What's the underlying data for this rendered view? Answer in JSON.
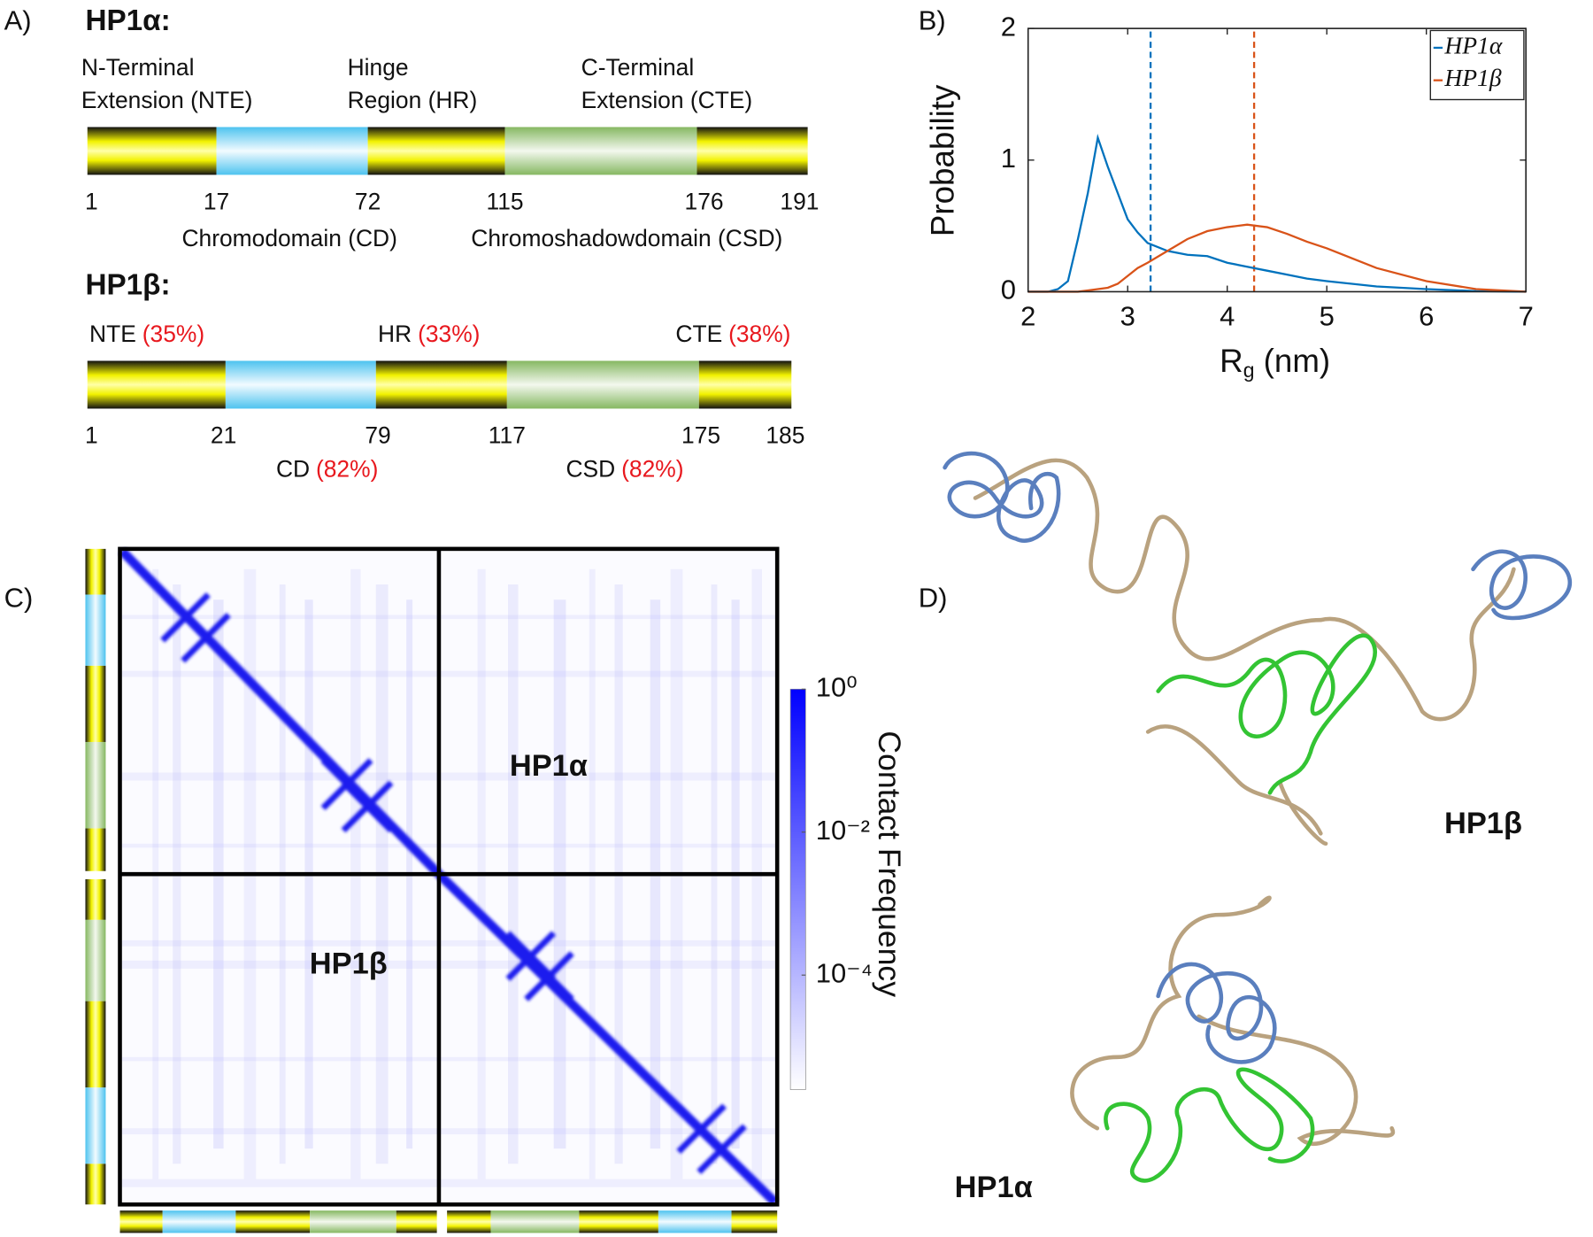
{
  "panel_labels": [
    "A)",
    "B)",
    "C)",
    "D)"
  ],
  "domains": {
    "hp1a": {
      "title": "HP1α:",
      "top_labels": [
        [
          "N-Terminal",
          "Extension (NTE)"
        ],
        [
          "Hinge",
          "Region (HR)"
        ],
        [
          "C-Terminal",
          "Extension (CTE)"
        ]
      ],
      "residues": [
        1,
        17,
        72,
        115,
        176,
        191
      ],
      "bottom_labels": [
        "Chromodomain (CD)",
        "Chromoshadowdomain (CSD)"
      ]
    },
    "hp1b": {
      "title": "HP1β:",
      "top_labels": [
        {
          "name": "NTE",
          "identity": "(35%)"
        },
        {
          "name": "HR",
          "identity": "(33%)"
        },
        {
          "name": "CTE",
          "identity": "(38%)"
        }
      ],
      "residues": [
        1,
        21,
        79,
        117,
        175,
        185
      ],
      "bottom_labels": [
        {
          "name": "CD",
          "identity": "(82%)"
        },
        {
          "name": "CSD",
          "identity": "(82%)"
        }
      ]
    }
  },
  "chart_data": [
    {
      "type": "line",
      "xlabel": [
        "R",
        "g",
        " (nm)"
      ],
      "ylabel": "Probability",
      "x": [
        2.0,
        2.2,
        2.3,
        2.4,
        2.5,
        2.6,
        2.7,
        2.8,
        2.9,
        3.0,
        3.1,
        3.2,
        3.4,
        3.6,
        3.8,
        4.0,
        4.2,
        4.4,
        4.6,
        4.8,
        5.0,
        5.5,
        6.0,
        6.5,
        7.0
      ],
      "xlim": [
        2,
        7
      ],
      "xticks": [
        2,
        3,
        4,
        5,
        6,
        7
      ],
      "ylim": [
        0,
        2
      ],
      "yticks": [
        0,
        1,
        2
      ],
      "series": [
        {
          "name": "HP1α",
          "color": "#0072bd",
          "values": [
            0,
            0,
            0.02,
            0.08,
            0.4,
            0.75,
            1.17,
            0.95,
            0.75,
            0.55,
            0.45,
            0.37,
            0.31,
            0.28,
            0.27,
            0.22,
            0.19,
            0.16,
            0.13,
            0.1,
            0.08,
            0.04,
            0.02,
            0.005,
            0
          ]
        },
        {
          "name": "HP1β",
          "color": "#d95319",
          "values": [
            0,
            0,
            0,
            0,
            0,
            0.01,
            0.02,
            0.03,
            0.06,
            0.12,
            0.18,
            0.22,
            0.31,
            0.4,
            0.46,
            0.49,
            0.51,
            0.49,
            0.44,
            0.38,
            0.33,
            0.18,
            0.08,
            0.02,
            0
          ]
        }
      ],
      "mean_lines": [
        {
          "x": 3.23,
          "color": "#0072bd"
        },
        {
          "x": 4.27,
          "color": "#d95319"
        }
      ],
      "legend": "upper-right"
    },
    {
      "type": "colorbar",
      "ylabel": "Contact Frequency",
      "scale": "log",
      "ylim": [
        2.5e-06,
        1
      ],
      "yticks": [
        {
          "value": 1,
          "label": "10⁰"
        },
        {
          "value": 0.01,
          "label": "10⁻²"
        },
        {
          "value": 0.0001,
          "label": "10⁻⁴"
        }
      ],
      "colors": [
        "#ffffff",
        "#0000ff"
      ]
    }
  ],
  "contact_map": {
    "labels": [
      "HP1α",
      "HP1β"
    ]
  },
  "structures": {
    "labels": [
      "HP1β",
      "HP1α"
    ]
  }
}
